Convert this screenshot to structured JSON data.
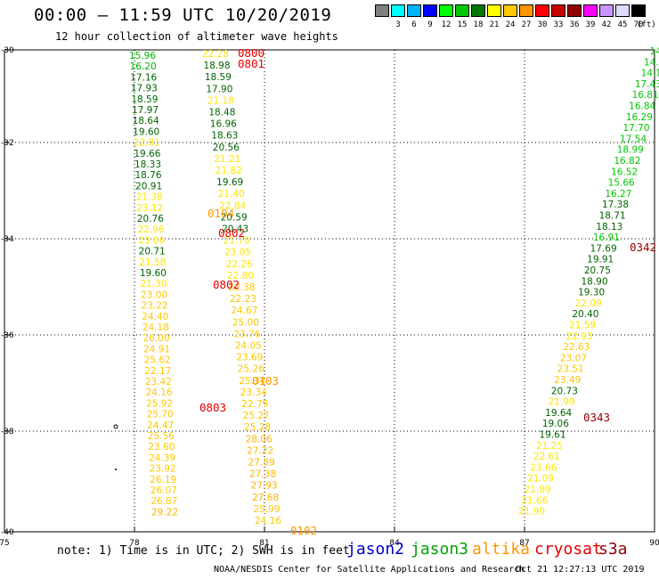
{
  "header": {
    "title": "00:00 — 11:59 UTC 10/20/2019",
    "subtitle": "12 hour collection of altimeter wave heights"
  },
  "color_scale": {
    "unit": "(ft)",
    "steps": [
      {
        "label": "",
        "color": "#808080"
      },
      {
        "label": "3",
        "color": "#00ffff"
      },
      {
        "label": "6",
        "color": "#00b4ff"
      },
      {
        "label": "9",
        "color": "#0000ff"
      },
      {
        "label": "12",
        "color": "#00ff00"
      },
      {
        "label": "15",
        "color": "#00c800"
      },
      {
        "label": "18",
        "color": "#007800"
      },
      {
        "label": "21",
        "color": "#ffff00"
      },
      {
        "label": "24",
        "color": "#ffc800"
      },
      {
        "label": "27",
        "color": "#ff9600"
      },
      {
        "label": "30",
        "color": "#ff0000"
      },
      {
        "label": "33",
        "color": "#c80000"
      },
      {
        "label": "36",
        "color": "#960000"
      },
      {
        "label": "39",
        "color": "#ff00ff"
      },
      {
        "label": "42",
        "color": "#c896ff"
      },
      {
        "label": "45",
        "color": "#dcdcff"
      },
      {
        "label": "70",
        "color": "#000000"
      }
    ]
  },
  "map": {
    "longitude_labels": [
      "75",
      "78",
      "81",
      "84",
      "87",
      "90"
    ],
    "latitude_labels": [
      "-30",
      "-32",
      "-34",
      "-36",
      "-38",
      "-40"
    ]
  },
  "tracks": {
    "track_a_green": [
      {
        "v": "15.96",
        "c": "#00b400"
      },
      {
        "v": "16.20",
        "c": "#00b400"
      },
      {
        "v": "17.16",
        "c": "#006400"
      },
      {
        "v": "17.93",
        "c": "#006400"
      },
      {
        "v": "18.59",
        "c": "#006400"
      },
      {
        "v": "17.97",
        "c": "#006400"
      },
      {
        "v": "18.64",
        "c": "#006400"
      },
      {
        "v": "19.60",
        "c": "#006400"
      },
      {
        "v": "22.81",
        "c": "#ffe600"
      },
      {
        "v": "19.66",
        "c": "#006400"
      },
      {
        "v": "18.33",
        "c": "#006400"
      },
      {
        "v": "18.76",
        "c": "#006400"
      },
      {
        "v": "20.91",
        "c": "#006400"
      },
      {
        "v": "21.38",
        "c": "#ffe600"
      },
      {
        "v": "23.12",
        "c": "#ffe600"
      },
      {
        "v": "20.76",
        "c": "#006400"
      },
      {
        "v": "22.96",
        "c": "#ffe600"
      },
      {
        "v": "23.06",
        "c": "#ffe600"
      },
      {
        "v": "20.71",
        "c": "#006400"
      },
      {
        "v": "21.58",
        "c": "#ffe600"
      },
      {
        "v": "19.60",
        "c": "#006400"
      },
      {
        "v": "21.30",
        "c": "#ffe600"
      },
      {
        "v": "23.00",
        "c": "#ffc800"
      },
      {
        "v": "23.22",
        "c": "#ffc800"
      },
      {
        "v": "24.40",
        "c": "#ffc800"
      },
      {
        "v": "24.18",
        "c": "#ffc800"
      },
      {
        "v": "26.00",
        "c": "#ffc800"
      },
      {
        "v": "24.91",
        "c": "#ffc800"
      },
      {
        "v": "25.62",
        "c": "#ffc800"
      },
      {
        "v": "22.17",
        "c": "#ffc800"
      },
      {
        "v": "23.42",
        "c": "#ffc800"
      },
      {
        "v": "24.16",
        "c": "#ffc800"
      },
      {
        "v": "25.92",
        "c": "#ffc800"
      },
      {
        "v": "25.70",
        "c": "#ffc800"
      },
      {
        "v": "24.47",
        "c": "#ffc800"
      },
      {
        "v": "25.56",
        "c": "#ffc800"
      },
      {
        "v": "23.60",
        "c": "#ffc800"
      },
      {
        "v": "24.39",
        "c": "#ffc800"
      },
      {
        "v": "23.92",
        "c": "#ffc800"
      },
      {
        "v": "26.19",
        "c": "#ffc800"
      },
      {
        "v": "26.07",
        "c": "#ffc800"
      },
      {
        "v": "26.87",
        "c": "#ffc800"
      },
      {
        "v": "29.22",
        "c": "#ffb400"
      }
    ],
    "track_b": [
      {
        "v": "22.28",
        "c": "#ffe600"
      },
      {
        "v": "18.98",
        "c": "#006400"
      },
      {
        "v": "18.59",
        "c": "#006400"
      },
      {
        "v": "17.90",
        "c": "#006400"
      },
      {
        "v": "21.18",
        "c": "#ffe600"
      },
      {
        "v": "18.48",
        "c": "#006400"
      },
      {
        "v": "16.96",
        "c": "#006400"
      },
      {
        "v": "18.63",
        "c": "#006400"
      },
      {
        "v": "20.56",
        "c": "#006400"
      },
      {
        "v": "21.21",
        "c": "#ffe600"
      },
      {
        "v": "21.82",
        "c": "#ffe600"
      },
      {
        "v": "19.69",
        "c": "#006400"
      },
      {
        "v": "21.40",
        "c": "#ffe600"
      },
      {
        "v": "22.84",
        "c": "#ffe600"
      },
      {
        "v": "20.59",
        "c": "#006400"
      },
      {
        "v": "20.43",
        "c": "#006400"
      },
      {
        "v": "21.70",
        "c": "#ffe600"
      },
      {
        "v": "23.05",
        "c": "#ffe600"
      },
      {
        "v": "22.26",
        "c": "#ffe600"
      },
      {
        "v": "22.80",
        "c": "#ffe600"
      },
      {
        "v": "22.38",
        "c": "#ffc800"
      },
      {
        "v": "22.23",
        "c": "#ffc800"
      },
      {
        "v": "24.67",
        "c": "#ffc800"
      },
      {
        "v": "25.00",
        "c": "#ffc800"
      },
      {
        "v": "23.76",
        "c": "#ffc800"
      },
      {
        "v": "24.05",
        "c": "#ffc800"
      },
      {
        "v": "23.69",
        "c": "#ffc800"
      },
      {
        "v": "25.26",
        "c": "#ffc800"
      },
      {
        "v": "25.34",
        "c": "#ffc800"
      },
      {
        "v": "23.34",
        "c": "#ffc800"
      },
      {
        "v": "22.79",
        "c": "#ffc800"
      },
      {
        "v": "25.27",
        "c": "#ffc800"
      },
      {
        "v": "25.28",
        "c": "#ffc800"
      },
      {
        "v": "28.06",
        "c": "#ffb400"
      },
      {
        "v": "27.22",
        "c": "#ffb400"
      },
      {
        "v": "27.89",
        "c": "#ffb400"
      },
      {
        "v": "27.38",
        "c": "#ffb400"
      },
      {
        "v": "27.93",
        "c": "#ffb400"
      },
      {
        "v": "27.68",
        "c": "#ffb400"
      },
      {
        "v": "25.99",
        "c": "#ffc800"
      },
      {
        "v": "24.16",
        "c": "#ffc800"
      }
    ],
    "track_c_east": [
      {
        "v": "14.",
        "c": "#00c800"
      },
      {
        "v": "14.1",
        "c": "#00c800"
      },
      {
        "v": "14.1",
        "c": "#00c800"
      },
      {
        "v": "17.43",
        "c": "#00c800"
      },
      {
        "v": "16.81",
        "c": "#00c800"
      },
      {
        "v": "16.84",
        "c": "#00c800"
      },
      {
        "v": "16.29",
        "c": "#00c800"
      },
      {
        "v": "17.70",
        "c": "#00c800"
      },
      {
        "v": "17.54",
        "c": "#00c800"
      },
      {
        "v": "18.99",
        "c": "#00c800"
      },
      {
        "v": "16.82",
        "c": "#00c800"
      },
      {
        "v": "16.52",
        "c": "#00c800"
      },
      {
        "v": "15.66",
        "c": "#00c800"
      },
      {
        "v": "16.27",
        "c": "#00c800"
      },
      {
        "v": "17.38",
        "c": "#006400"
      },
      {
        "v": "18.71",
        "c": "#006400"
      },
      {
        "v": "18.13",
        "c": "#006400"
      },
      {
        "v": "16.91",
        "c": "#00c800"
      },
      {
        "v": "17.69",
        "c": "#006400"
      },
      {
        "v": "19.91",
        "c": "#006400"
      },
      {
        "v": "20.75",
        "c": "#006400"
      },
      {
        "v": "18.90",
        "c": "#006400"
      },
      {
        "v": "19.30",
        "c": "#006400"
      },
      {
        "v": "22.09",
        "c": "#ffe600"
      },
      {
        "v": "20.40",
        "c": "#006400"
      },
      {
        "v": "21.59",
        "c": "#ffe600"
      },
      {
        "v": "22.93",
        "c": "#ffe600"
      },
      {
        "v": "22.63",
        "c": "#ffc800"
      },
      {
        "v": "23.07",
        "c": "#ffc800"
      },
      {
        "v": "23.51",
        "c": "#ffc800"
      },
      {
        "v": "23.49",
        "c": "#ffc800"
      },
      {
        "v": "20.73",
        "c": "#006400"
      },
      {
        "v": "21.99",
        "c": "#ffe600"
      },
      {
        "v": "19.64",
        "c": "#006400"
      },
      {
        "v": "19.06",
        "c": "#006400"
      },
      {
        "v": "19.61",
        "c": "#006400"
      },
      {
        "v": "21.25",
        "c": "#ffe600"
      },
      {
        "v": "22.61",
        "c": "#ffe600"
      },
      {
        "v": "23.66",
        "c": "#ffe600"
      },
      {
        "v": "21.09",
        "c": "#ffe600"
      },
      {
        "v": "21.89",
        "c": "#ffe600"
      },
      {
        "v": "21.66",
        "c": "#ffe600"
      },
      {
        "v": "21.90",
        "c": "#ffe600"
      }
    ]
  },
  "time_labels": [
    {
      "t": "0800",
      "c": "#e60000"
    },
    {
      "t": "0801",
      "c": "#e60000"
    },
    {
      "t": "0104",
      "c": "#ff9600"
    },
    {
      "t": "0802",
      "c": "#e60000"
    },
    {
      "t": "0802",
      "c": "#e60000"
    },
    {
      "t": "0103",
      "c": "#ff9600"
    },
    {
      "t": "0803",
      "c": "#e60000"
    },
    {
      "t": "0102",
      "c": "#ff9600"
    },
    {
      "t": "0342",
      "c": "#960000"
    },
    {
      "t": "0343",
      "c": "#960000"
    }
  ],
  "footer": {
    "note": "note: 1) Time is in UTC; 2) SWH is in feet",
    "legend": [
      {
        "label": "jason2",
        "color": "#0000c8"
      },
      {
        "label": "jason3",
        "color": "#00a000"
      },
      {
        "label": "altika",
        "color": "#ff9600"
      },
      {
        "label": "cryosat",
        "color": "#e60000"
      },
      {
        "label": "s3a",
        "color": "#960000"
      }
    ],
    "credit": "NOAA/NESDIS Center for Satellite Applications and Research",
    "timestamp": "Oct 21 12:27:13 UTC 2019"
  }
}
